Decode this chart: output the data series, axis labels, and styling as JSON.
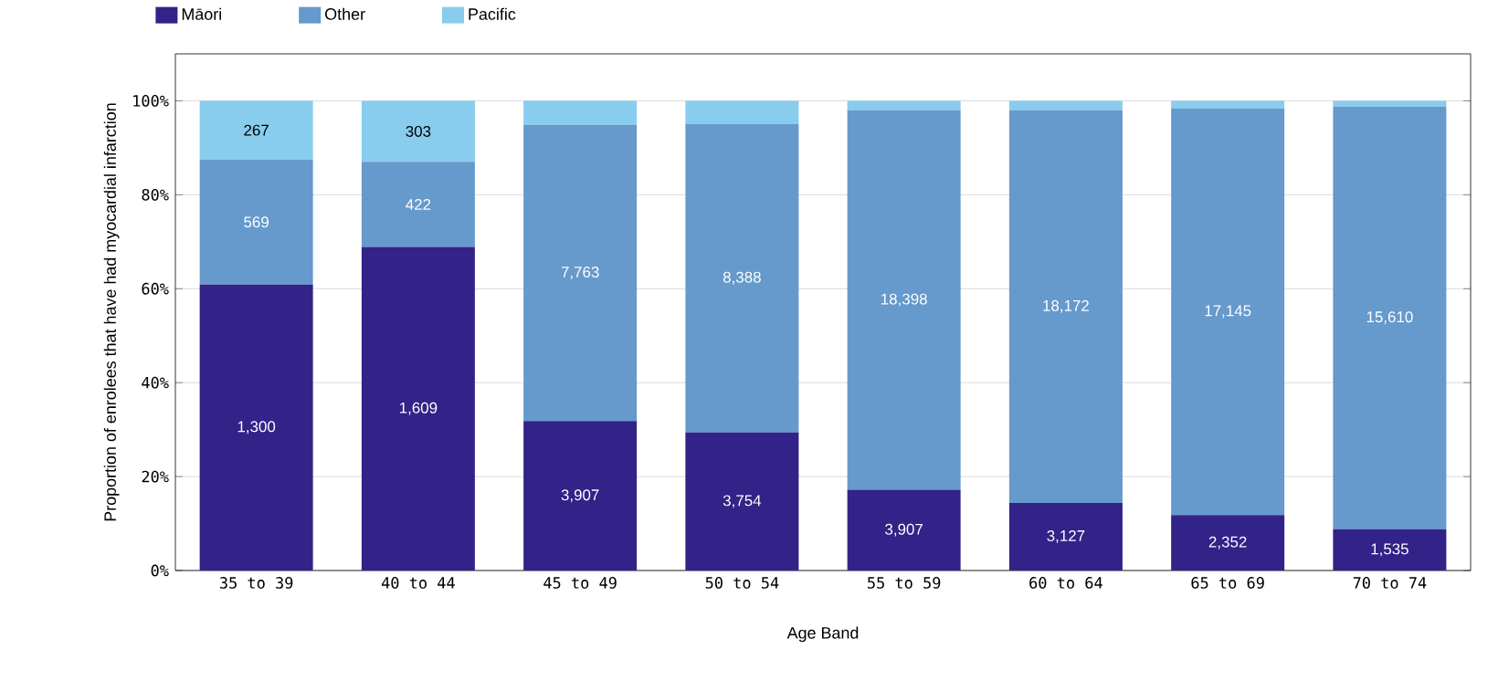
{
  "chart_data": {
    "type": "bar",
    "stacked": true,
    "xlabel": "Age Band",
    "ylabel": "Proportion of enrolees that have had myocardial infarction",
    "categories": [
      "35 to 39",
      "40 to 44",
      "45 to 49",
      "50 to 54",
      "55 to 59",
      "60 to 64",
      "65 to 69",
      "70 to 74"
    ],
    "series": [
      {
        "name": "Māori",
        "color": "#332288",
        "values": [
          60.9,
          68.9,
          31.8,
          29.4,
          17.2,
          14.4,
          11.8,
          8.8
        ]
      },
      {
        "name": "Other",
        "color": "#6699cc",
        "values": [
          26.6,
          18.1,
          63.1,
          65.7,
          80.8,
          83.6,
          86.6,
          90.0
        ]
      },
      {
        "name": "Pacific",
        "color": "#88ccee",
        "values": [
          12.5,
          13.0,
          5.1,
          4.9,
          2.0,
          2.0,
          1.6,
          1.2
        ]
      }
    ],
    "annotations": [
      "1,300",
      "1,609",
      "3,907",
      "3,754",
      "3,907",
      "3,127",
      "2,352",
      "1,535",
      "569",
      "422",
      "7,763",
      "8,388",
      "18,398",
      "18,172",
      "17,145",
      "15,610",
      "267",
      "303"
    ],
    "ylim": [
      0,
      110
    ],
    "yticks": [
      {
        "value": 0,
        "label": "0%"
      },
      {
        "value": 20,
        "label": "20%"
      },
      {
        "value": 40,
        "label": "40%"
      },
      {
        "value": 60,
        "label": "60%"
      },
      {
        "value": 80,
        "label": "80%"
      },
      {
        "value": 100,
        "label": "100%"
      }
    ],
    "grid": "y",
    "legend": "top left"
  }
}
